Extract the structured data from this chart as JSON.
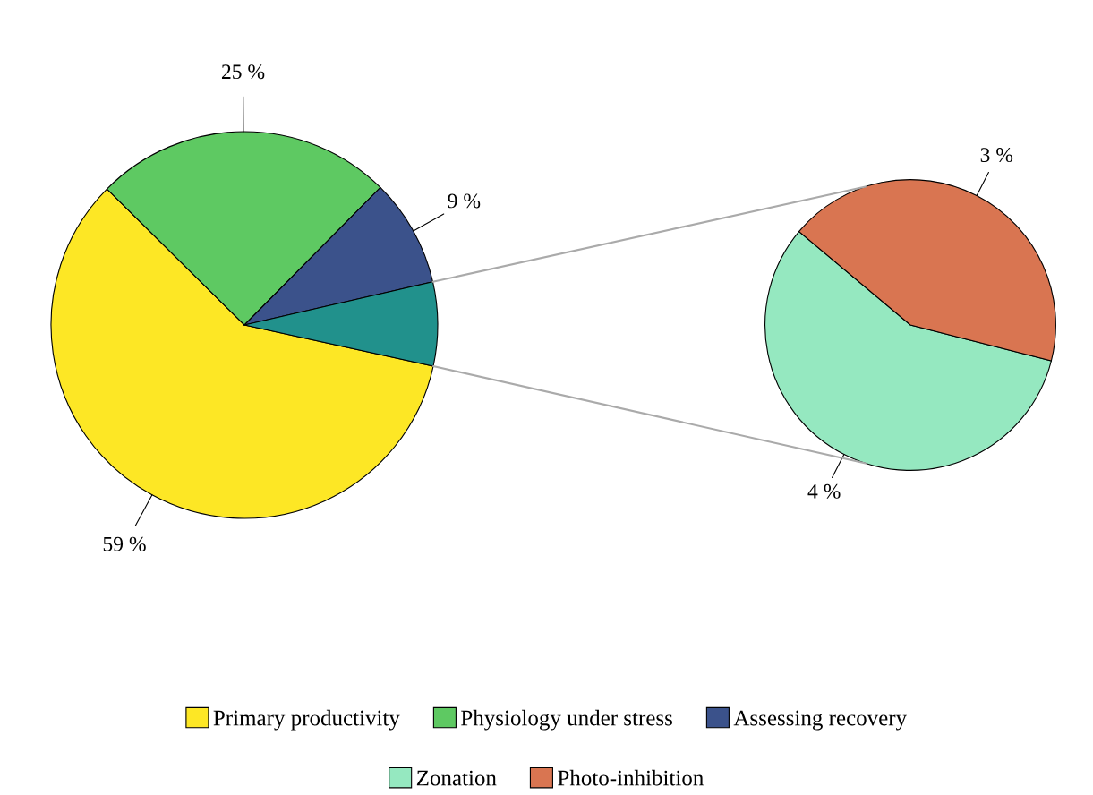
{
  "chart_data": [
    {
      "type": "pie",
      "categories": [
        "Primary productivity",
        "Physiology under stress",
        "Assessing recovery",
        null
      ],
      "values": [
        59,
        25,
        9,
        7
      ],
      "colors": [
        "#fde725",
        "#5ec962",
        "#3b528b",
        "#21918c"
      ],
      "value_labels": [
        "59 %",
        "25 %",
        "9 %",
        null
      ],
      "legend": "bottom"
    },
    {
      "type": "pie",
      "categories": [
        "Zonation",
        "Photo-inhibition"
      ],
      "values": [
        4,
        3
      ],
      "colors": [
        "#95e8c0",
        "#d97551"
      ],
      "value_labels": [
        "4 %",
        "3 %"
      ],
      "legend": "bottom"
    }
  ]
}
